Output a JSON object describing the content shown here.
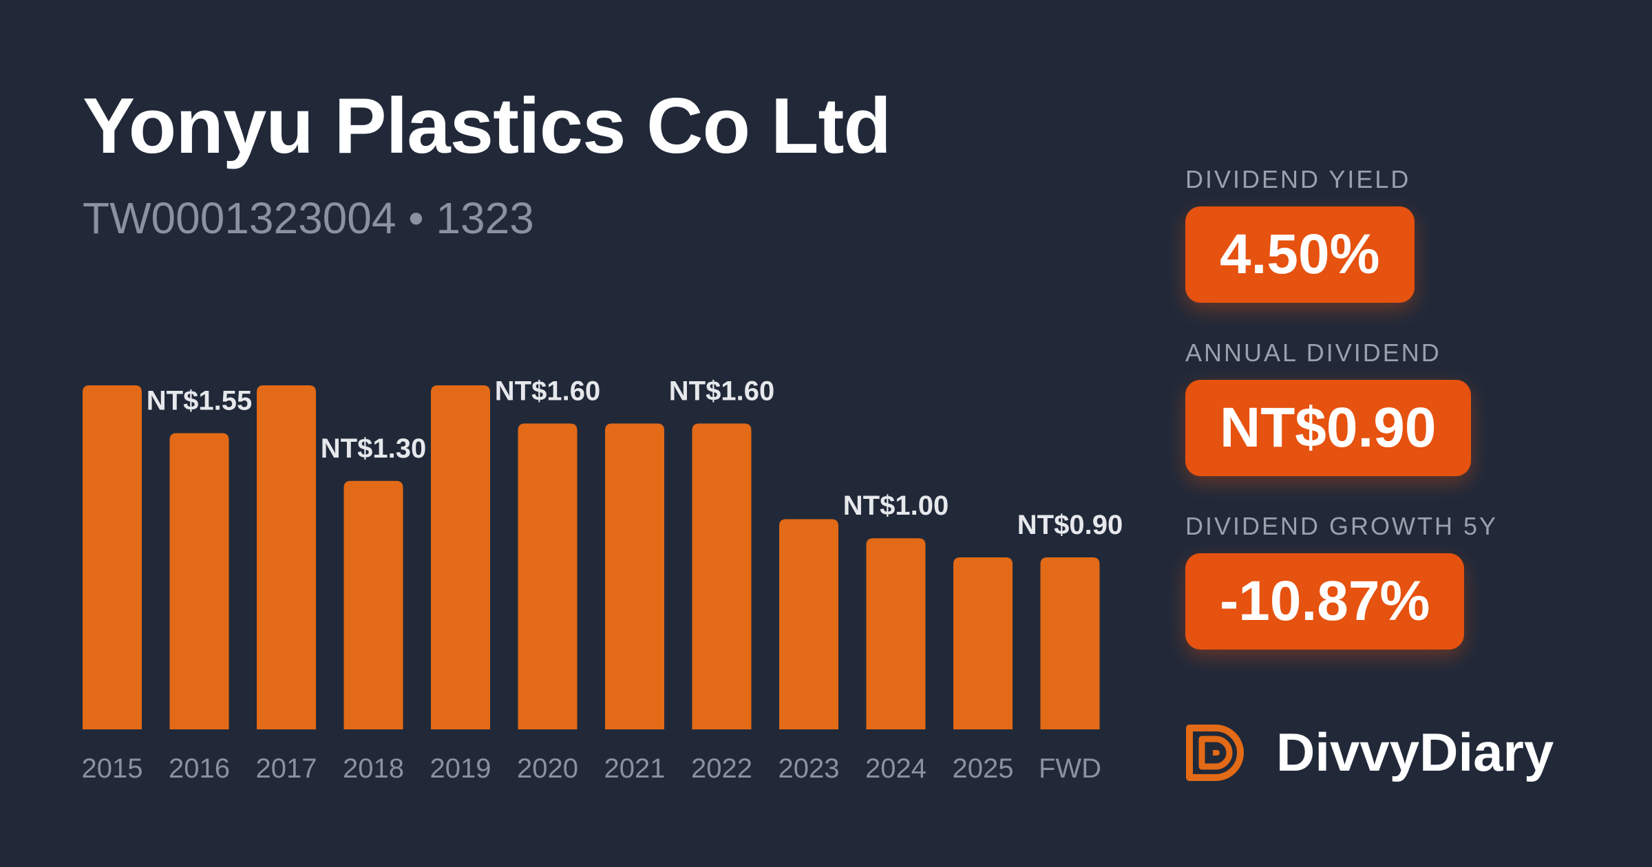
{
  "header": {
    "title": "Yonyu Plastics Co Ltd",
    "subtitle": "TW0001323004 • 1323"
  },
  "stats": [
    {
      "label": "DIVIDEND YIELD",
      "value": "4.50%"
    },
    {
      "label": "ANNUAL DIVIDEND",
      "value": "NT$0.90"
    },
    {
      "label": "DIVIDEND GROWTH 5Y",
      "value": "-10.87%"
    }
  ],
  "brand": {
    "name": "DivvyDiary",
    "icon": "divvydiary-logo-icon"
  },
  "colors": {
    "background": "#212939",
    "bar": "#e36a16",
    "accent": "#e6520f"
  },
  "chart_data": {
    "type": "bar",
    "categories": [
      "2015",
      "2016",
      "2017",
      "2018",
      "2019",
      "2020",
      "2021",
      "2022",
      "2023",
      "2024",
      "2025",
      "FWD"
    ],
    "values": [
      1.8,
      1.55,
      1.8,
      1.3,
      1.8,
      1.6,
      1.6,
      1.6,
      1.1,
      1.0,
      0.9,
      0.9
    ],
    "data_labels": [
      "",
      "NT$1.55",
      "",
      "NT$1.30",
      "",
      "NT$1.60",
      "",
      "NT$1.60",
      "",
      "NT$1.00",
      "",
      "NT$0.90"
    ],
    "ylim": [
      0,
      1.8
    ],
    "grid": false,
    "legend": "none"
  }
}
